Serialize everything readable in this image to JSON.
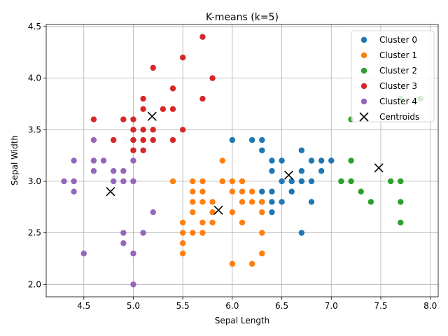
{
  "chart_data": {
    "type": "scatter",
    "title": "K-means (k=5)",
    "xlabel": "Sepal Length",
    "ylabel": "Sepal Width",
    "xlim": [
      4.12,
      8.08
    ],
    "ylim": [
      1.88,
      4.52
    ],
    "xticks": [
      "4.5",
      "5.0",
      "5.5",
      "6.0",
      "6.5",
      "7.0",
      "7.5",
      "8.0"
    ],
    "yticks": [
      "2.0",
      "2.5",
      "3.0",
      "3.5",
      "4.0",
      "4.5"
    ],
    "grid": true,
    "legend_position": "top-right",
    "series": [
      {
        "name": "Cluster 0",
        "color": "#1f77b4",
        "points": [
          [
            6.0,
            3.4
          ],
          [
            6.2,
            3.4
          ],
          [
            6.3,
            3.4
          ],
          [
            6.3,
            3.3
          ],
          [
            6.7,
            3.3
          ],
          [
            6.4,
            3.2
          ],
          [
            6.5,
            3.2
          ],
          [
            6.8,
            3.2
          ],
          [
            6.9,
            3.2
          ],
          [
            7.0,
            3.2
          ],
          [
            6.4,
            3.1
          ],
          [
            6.7,
            3.1
          ],
          [
            6.9,
            3.1
          ],
          [
            6.5,
            3.0
          ],
          [
            6.6,
            3.0
          ],
          [
            6.7,
            3.0
          ],
          [
            6.8,
            3.0
          ],
          [
            6.3,
            2.9
          ],
          [
            6.4,
            2.9
          ],
          [
            6.6,
            2.9
          ],
          [
            6.3,
            2.8
          ],
          [
            6.4,
            2.8
          ],
          [
            6.5,
            2.8
          ],
          [
            6.8,
            2.8
          ],
          [
            6.4,
            2.7
          ],
          [
            6.7,
            2.5
          ]
        ]
      },
      {
        "name": "Cluster 1",
        "color": "#ff7f0e",
        "points": [
          [
            5.9,
            3.2
          ],
          [
            5.4,
            3.0
          ],
          [
            5.6,
            3.0
          ],
          [
            5.7,
            3.0
          ],
          [
            5.9,
            3.0
          ],
          [
            6.0,
            3.0
          ],
          [
            6.1,
            3.0
          ],
          [
            5.6,
            2.9
          ],
          [
            5.7,
            2.9
          ],
          [
            6.0,
            2.9
          ],
          [
            6.1,
            2.9
          ],
          [
            6.2,
            2.9
          ],
          [
            5.6,
            2.8
          ],
          [
            5.7,
            2.8
          ],
          [
            5.8,
            2.8
          ],
          [
            6.1,
            2.8
          ],
          [
            6.2,
            2.8
          ],
          [
            6.3,
            2.8
          ],
          [
            5.6,
            2.7
          ],
          [
            5.8,
            2.7
          ],
          [
            6.0,
            2.7
          ],
          [
            6.3,
            2.7
          ],
          [
            5.5,
            2.6
          ],
          [
            5.7,
            2.6
          ],
          [
            5.8,
            2.6
          ],
          [
            6.1,
            2.6
          ],
          [
            5.5,
            2.5
          ],
          [
            5.6,
            2.5
          ],
          [
            5.7,
            2.5
          ],
          [
            6.3,
            2.5
          ],
          [
            5.5,
            2.4
          ],
          [
            5.5,
            2.3
          ],
          [
            6.3,
            2.3
          ],
          [
            6.0,
            2.2
          ],
          [
            6.2,
            2.2
          ]
        ]
      },
      {
        "name": "Cluster 2",
        "color": "#2ca02c",
        "points": [
          [
            7.9,
            3.8
          ],
          [
            7.7,
            3.8
          ],
          [
            7.2,
            3.6
          ],
          [
            7.2,
            3.2
          ],
          [
            7.1,
            3.0
          ],
          [
            7.2,
            3.0
          ],
          [
            7.6,
            3.0
          ],
          [
            7.7,
            3.0
          ],
          [
            7.3,
            2.9
          ],
          [
            7.4,
            2.8
          ],
          [
            7.7,
            2.8
          ],
          [
            7.7,
            2.6
          ]
        ]
      },
      {
        "name": "Cluster 3",
        "color": "#d62728",
        "points": [
          [
            5.7,
            4.4
          ],
          [
            5.5,
            4.2
          ],
          [
            5.2,
            4.1
          ],
          [
            5.8,
            4.0
          ],
          [
            5.4,
            3.9
          ],
          [
            5.1,
            3.8
          ],
          [
            5.7,
            3.8
          ],
          [
            5.1,
            3.7
          ],
          [
            5.3,
            3.7
          ],
          [
            5.4,
            3.7
          ],
          [
            4.6,
            3.6
          ],
          [
            4.9,
            3.6
          ],
          [
            5.0,
            3.6
          ],
          [
            5.0,
            3.5
          ],
          [
            5.1,
            3.5
          ],
          [
            5.2,
            3.5
          ],
          [
            5.5,
            3.5
          ],
          [
            4.8,
            3.4
          ],
          [
            5.0,
            3.4
          ],
          [
            5.1,
            3.4
          ],
          [
            5.2,
            3.4
          ],
          [
            5.4,
            3.4
          ],
          [
            5.0,
            3.3
          ],
          [
            5.1,
            3.3
          ]
        ]
      },
      {
        "name": "Cluster 4",
        "color": "#9467bd",
        "points": [
          [
            4.6,
            3.4
          ],
          [
            4.4,
            3.2
          ],
          [
            4.6,
            3.2
          ],
          [
            4.7,
            3.2
          ],
          [
            5.0,
            3.2
          ],
          [
            4.6,
            3.1
          ],
          [
            4.8,
            3.1
          ],
          [
            4.9,
            3.1
          ],
          [
            4.3,
            3.0
          ],
          [
            4.4,
            3.0
          ],
          [
            4.8,
            3.0
          ],
          [
            4.9,
            3.0
          ],
          [
            5.0,
            3.0
          ],
          [
            4.4,
            2.9
          ],
          [
            5.2,
            2.7
          ],
          [
            4.9,
            2.5
          ],
          [
            5.1,
            2.5
          ],
          [
            4.9,
            2.4
          ],
          [
            4.5,
            2.3
          ],
          [
            5.0,
            2.3
          ],
          [
            5.0,
            2.0
          ]
        ]
      },
      {
        "name": "Centroids",
        "color": "#000000",
        "marker": "x",
        "points": [
          [
            5.19,
            3.63
          ],
          [
            4.77,
            2.9
          ],
          [
            5.86,
            2.72
          ],
          [
            6.57,
            3.06
          ],
          [
            7.48,
            3.13
          ]
        ]
      }
    ]
  }
}
